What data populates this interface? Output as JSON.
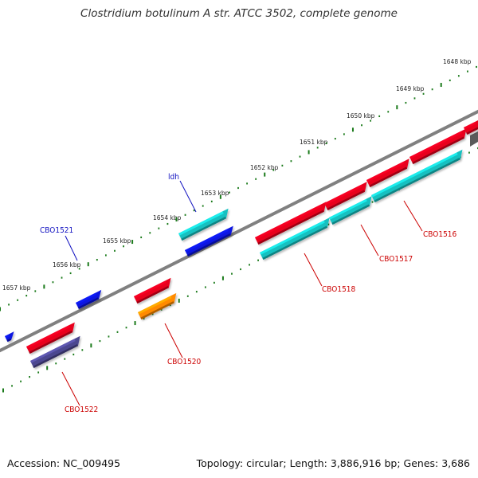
{
  "title": "Clostridium botulinum A str. ATCC 3502, complete genome",
  "footer": {
    "accession": "Accession: NC_009495",
    "summary": "Topology: circular; Length: 3,886,916 bp; Genes: 3,686"
  },
  "ticks": [
    "1648 kbp",
    "1649 kbp",
    "1650 kbp",
    "1651 kbp",
    "1652 kbp",
    "1653 kbp",
    "1654 kbp",
    "1655 kbp",
    "1656 kbp",
    "1657 kbp"
  ],
  "gene_labels": {
    "ldh": "ldh",
    "cbo1521": "CBO1521",
    "cbo1516": "CBO1516",
    "cbo1517": "CBO1517",
    "cbo1518": "CBO1518",
    "cbo1520": "CBO1520",
    "cbo1522": "CBO1522"
  },
  "colors": {
    "backbone": "#808080",
    "tick_green": "#1a7a1a",
    "red_gene": "#e8001c",
    "cyan_gene": "#17c0c0",
    "blue_gene": "#0a16e0",
    "orange_gene": "#ff8a00",
    "purple_gene": "#4c478f",
    "red_label": "#cc0000",
    "blue_label": "#1010c0"
  }
}
